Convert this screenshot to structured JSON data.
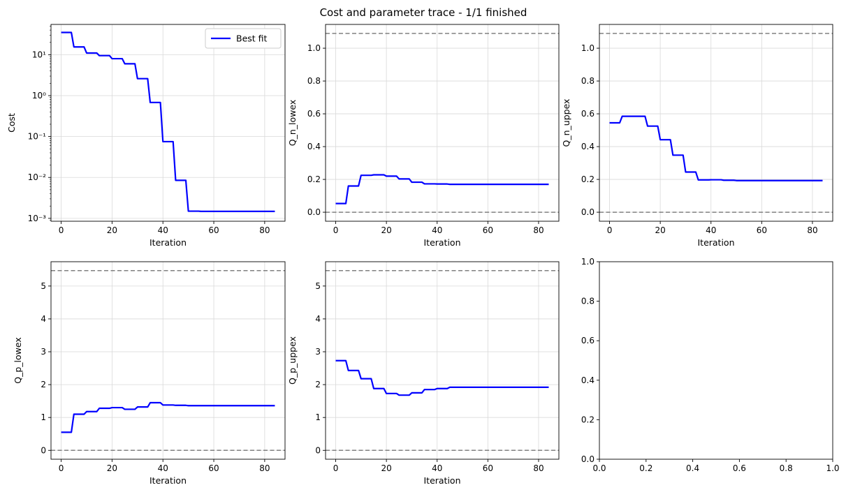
{
  "figure": {
    "suptitle": "Cost and parameter trace - 1/1 finished"
  },
  "chart_data": [
    {
      "type": "line",
      "panel": "top-left",
      "xlabel": "Iteration",
      "ylabel": "Cost",
      "yscale": "log",
      "xlim": [
        -4,
        88
      ],
      "ylim": [
        0.00085,
        55
      ],
      "xticks": [
        0,
        20,
        40,
        60,
        80
      ],
      "yticks": [
        {
          "value": 0.001,
          "label": "10⁻³"
        },
        {
          "value": 0.01,
          "label": "10⁻²"
        },
        {
          "value": 0.1,
          "label": "10⁻¹"
        },
        {
          "value": 1,
          "label": "10⁰"
        },
        {
          "value": 10,
          "label": "10¹"
        }
      ],
      "grid": true,
      "legend": {
        "position": "top-right",
        "entries": [
          "Best fit"
        ]
      },
      "series": [
        {
          "name": "Best fit",
          "color": "#0000ff",
          "points": [
            [
              0,
              35
            ],
            [
              4,
              35
            ],
            [
              5,
              15.5
            ],
            [
              9,
              15.5
            ],
            [
              10,
              11
            ],
            [
              14,
              11
            ],
            [
              15,
              9.5
            ],
            [
              19,
              9.5
            ],
            [
              20,
              8
            ],
            [
              24,
              8
            ],
            [
              25,
              6
            ],
            [
              29,
              6
            ],
            [
              30,
              2.6
            ],
            [
              34,
              2.6
            ],
            [
              35,
              0.68
            ],
            [
              39,
              0.68
            ],
            [
              40,
              0.075
            ],
            [
              44,
              0.075
            ],
            [
              45,
              0.0085
            ],
            [
              49,
              0.0085
            ],
            [
              50,
              0.0015
            ],
            [
              54,
              0.0015
            ],
            [
              55,
              0.00148
            ],
            [
              84,
              0.00148
            ]
          ]
        }
      ],
      "hlines": []
    },
    {
      "type": "line",
      "panel": "top-middle",
      "xlabel": "Iteration",
      "ylabel": "Q_n_lowex",
      "yscale": "linear",
      "xlim": [
        -4,
        88
      ],
      "ylim": [
        -0.055,
        1.145
      ],
      "xticks": [
        0,
        20,
        40,
        60,
        80
      ],
      "yticks": [
        {
          "value": 0,
          "label": "0.0"
        },
        {
          "value": 0.2,
          "label": "0.2"
        },
        {
          "value": 0.4,
          "label": "0.4"
        },
        {
          "value": 0.6,
          "label": "0.6"
        },
        {
          "value": 0.8,
          "label": "0.8"
        },
        {
          "value": 1.0,
          "label": "1.0"
        }
      ],
      "grid": true,
      "series": [
        {
          "color": "#0000ff",
          "points": [
            [
              0,
              0.053
            ],
            [
              4,
              0.053
            ],
            [
              5,
              0.16
            ],
            [
              9,
              0.16
            ],
            [
              10,
              0.225
            ],
            [
              14,
              0.225
            ],
            [
              15,
              0.228
            ],
            [
              19,
              0.228
            ],
            [
              20,
              0.22
            ],
            [
              24,
              0.22
            ],
            [
              25,
              0.203
            ],
            [
              29,
              0.203
            ],
            [
              30,
              0.183
            ],
            [
              34,
              0.183
            ],
            [
              35,
              0.173
            ],
            [
              39,
              0.173
            ],
            [
              40,
              0.172
            ],
            [
              44,
              0.172
            ],
            [
              45,
              0.17
            ],
            [
              84,
              0.17
            ]
          ]
        }
      ],
      "hlines": [
        {
          "y": 0,
          "color": "#808080"
        },
        {
          "y": 1.09,
          "color": "#808080"
        }
      ]
    },
    {
      "type": "line",
      "panel": "top-right",
      "xlabel": "Iteration",
      "ylabel": "Q_n_uppex",
      "yscale": "linear",
      "xlim": [
        -4,
        88
      ],
      "ylim": [
        -0.055,
        1.145
      ],
      "xticks": [
        0,
        20,
        40,
        60,
        80
      ],
      "yticks": [
        {
          "value": 0,
          "label": "0.0"
        },
        {
          "value": 0.2,
          "label": "0.2"
        },
        {
          "value": 0.4,
          "label": "0.4"
        },
        {
          "value": 0.6,
          "label": "0.6"
        },
        {
          "value": 0.8,
          "label": "0.8"
        },
        {
          "value": 1.0,
          "label": "1.0"
        }
      ],
      "grid": true,
      "series": [
        {
          "color": "#0000ff",
          "points": [
            [
              0,
              0.545
            ],
            [
              4,
              0.545
            ],
            [
              5,
              0.585
            ],
            [
              14,
              0.585
            ],
            [
              15,
              0.525
            ],
            [
              19,
              0.525
            ],
            [
              20,
              0.442
            ],
            [
              24,
              0.442
            ],
            [
              25,
              0.348
            ],
            [
              29,
              0.348
            ],
            [
              30,
              0.245
            ],
            [
              34,
              0.245
            ],
            [
              35,
              0.197
            ],
            [
              39,
              0.197
            ],
            [
              40,
              0.198
            ],
            [
              44,
              0.198
            ],
            [
              45,
              0.195
            ],
            [
              49,
              0.195
            ],
            [
              50,
              0.193
            ],
            [
              84,
              0.193
            ]
          ]
        }
      ],
      "hlines": [
        {
          "y": 0,
          "color": "#808080"
        },
        {
          "y": 1.09,
          "color": "#808080"
        }
      ]
    },
    {
      "type": "line",
      "panel": "bottom-left",
      "xlabel": "Iteration",
      "ylabel": "Q_p_lowex",
      "yscale": "linear",
      "xlim": [
        -4,
        88
      ],
      "ylim": [
        -0.27,
        5.74
      ],
      "xticks": [
        0,
        20,
        40,
        60,
        80
      ],
      "yticks": [
        {
          "value": 0,
          "label": "0"
        },
        {
          "value": 1,
          "label": "1"
        },
        {
          "value": 2,
          "label": "2"
        },
        {
          "value": 3,
          "label": "3"
        },
        {
          "value": 4,
          "label": "4"
        },
        {
          "value": 5,
          "label": "5"
        }
      ],
      "grid": true,
      "series": [
        {
          "color": "#0000ff",
          "points": [
            [
              0,
              0.55
            ],
            [
              4,
              0.55
            ],
            [
              5,
              1.1
            ],
            [
              9,
              1.1
            ],
            [
              10,
              1.18
            ],
            [
              14,
              1.18
            ],
            [
              15,
              1.28
            ],
            [
              19,
              1.28
            ],
            [
              20,
              1.3
            ],
            [
              24,
              1.3
            ],
            [
              25,
              1.25
            ],
            [
              29,
              1.25
            ],
            [
              30,
              1.32
            ],
            [
              34,
              1.32
            ],
            [
              35,
              1.45
            ],
            [
              39,
              1.45
            ],
            [
              40,
              1.38
            ],
            [
              44,
              1.38
            ],
            [
              45,
              1.37
            ],
            [
              49,
              1.37
            ],
            [
              50,
              1.36
            ],
            [
              84,
              1.36
            ]
          ]
        }
      ],
      "hlines": [
        {
          "y": 0,
          "color": "#808080"
        },
        {
          "y": 5.47,
          "color": "#808080"
        }
      ]
    },
    {
      "type": "line",
      "panel": "bottom-middle",
      "xlabel": "Iteration",
      "ylabel": "Q_p_uppex",
      "yscale": "linear",
      "xlim": [
        -4,
        88
      ],
      "ylim": [
        -0.27,
        5.74
      ],
      "xticks": [
        0,
        20,
        40,
        60,
        80
      ],
      "yticks": [
        {
          "value": 0,
          "label": "0"
        },
        {
          "value": 1,
          "label": "1"
        },
        {
          "value": 2,
          "label": "2"
        },
        {
          "value": 3,
          "label": "3"
        },
        {
          "value": 4,
          "label": "4"
        },
        {
          "value": 5,
          "label": "5"
        }
      ],
      "grid": true,
      "series": [
        {
          "color": "#0000ff",
          "points": [
            [
              0,
              2.73
            ],
            [
              4,
              2.73
            ],
            [
              5,
              2.43
            ],
            [
              9,
              2.43
            ],
            [
              10,
              2.18
            ],
            [
              14,
              2.18
            ],
            [
              15,
              1.88
            ],
            [
              19,
              1.88
            ],
            [
              20,
              1.73
            ],
            [
              24,
              1.73
            ],
            [
              25,
              1.68
            ],
            [
              29,
              1.68
            ],
            [
              30,
              1.75
            ],
            [
              34,
              1.75
            ],
            [
              35,
              1.85
            ],
            [
              39,
              1.85
            ],
            [
              40,
              1.88
            ],
            [
              44,
              1.88
            ],
            [
              45,
              1.92
            ],
            [
              84,
              1.92
            ]
          ]
        }
      ],
      "hlines": [
        {
          "y": 0,
          "color": "#808080"
        },
        {
          "y": 5.47,
          "color": "#808080"
        }
      ]
    },
    {
      "type": "line",
      "panel": "bottom-right",
      "xlabel": "",
      "ylabel": "",
      "yscale": "linear",
      "xlim": [
        0,
        1
      ],
      "ylim": [
        0,
        1
      ],
      "xticks": [
        {
          "value": 0,
          "label": "0.0"
        },
        {
          "value": 0.2,
          "label": "0.2"
        },
        {
          "value": 0.4,
          "label": "0.4"
        },
        {
          "value": 0.6,
          "label": "0.6"
        },
        {
          "value": 0.8,
          "label": "0.8"
        },
        {
          "value": 1.0,
          "label": "1.0"
        }
      ],
      "yticks": [
        {
          "value": 0,
          "label": "0.0"
        },
        {
          "value": 0.2,
          "label": "0.2"
        },
        {
          "value": 0.4,
          "label": "0.4"
        },
        {
          "value": 0.6,
          "label": "0.6"
        },
        {
          "value": 0.8,
          "label": "0.8"
        },
        {
          "value": 1.0,
          "label": "1.0"
        }
      ],
      "grid": false,
      "series": [],
      "hlines": []
    }
  ]
}
